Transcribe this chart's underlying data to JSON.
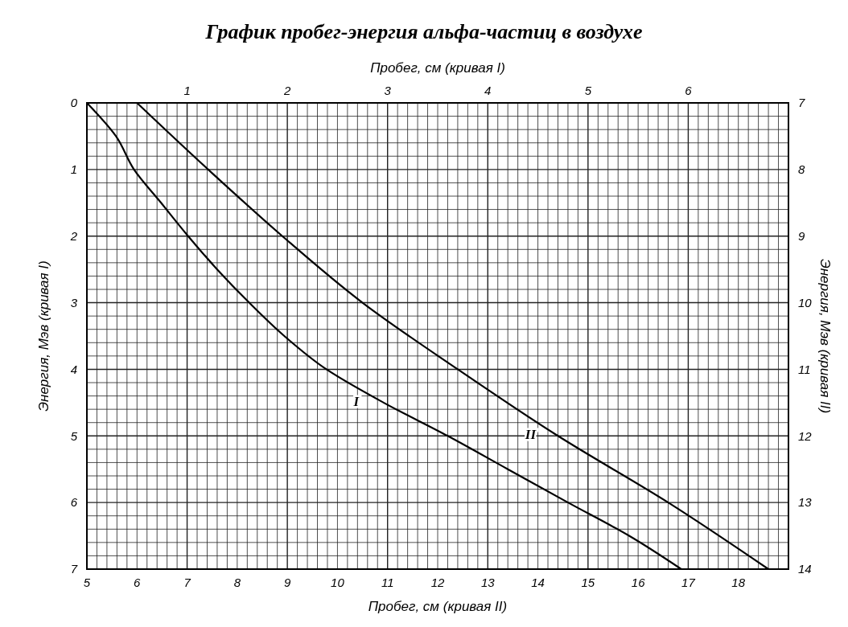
{
  "chart_data": {
    "type": "line",
    "title": "График пробег-энергия альфа-частиц в воздухе",
    "x2label": "Пробег, см (кривая I)",
    "xlabel": "Пробег, см (кривая II)",
    "ylabel": "Энергия, Мэв (кривая I)",
    "y2label": "Энергия, Мэв (кривая II)",
    "xlim": [
      5,
      19
    ],
    "xticks": [
      5,
      6,
      7,
      8,
      9,
      10,
      11,
      12,
      13,
      14,
      15,
      16,
      17,
      18
    ],
    "x2lim": [
      0,
      7
    ],
    "x2ticks": [
      {
        "value": 0,
        "label": null
      },
      {
        "value": 0.1,
        "label": null
      },
      {
        "value": 0.2,
        "label": null
      },
      {
        "value": 0.3,
        "label": null
      },
      {
        "value": 0.4,
        "label": null
      },
      {
        "value": 0.5,
        "label": null
      },
      {
        "value": 0.6,
        "label": null
      },
      {
        "value": 0.7,
        "label": null
      },
      {
        "value": 0.8,
        "label": null
      },
      {
        "value": 0.9,
        "label": null
      },
      1,
      {
        "value": 1.1,
        "label": null
      },
      {
        "value": 1.2,
        "label": null
      },
      {
        "value": 1.3,
        "label": null
      },
      {
        "value": 1.4,
        "label": null
      },
      {
        "value": 1.5,
        "label": null
      },
      {
        "value": 1.6,
        "label": null
      },
      {
        "value": 1.7,
        "label": null
      },
      {
        "value": 1.8,
        "label": null
      },
      {
        "value": 1.9,
        "label": null
      },
      2,
      {
        "value": 2.1,
        "label": null
      },
      {
        "value": 2.2,
        "label": null
      },
      {
        "value": 2.3,
        "label": null
      },
      {
        "value": 2.4,
        "label": null
      },
      {
        "value": 2.5,
        "label": null
      },
      {
        "value": 2.6,
        "label": null
      },
      {
        "value": 2.7,
        "label": null
      },
      {
        "value": 2.8,
        "label": null
      },
      {
        "value": 2.9,
        "label": null
      },
      3,
      {
        "value": 3.1,
        "label": null
      },
      {
        "value": 3.2,
        "label": null
      },
      {
        "value": 3.3,
        "label": null
      },
      {
        "value": 3.4,
        "label": null
      },
      {
        "value": 3.5,
        "label": null
      },
      {
        "value": 3.6,
        "label": null
      },
      {
        "value": 3.7,
        "label": null
      },
      {
        "value": 3.8,
        "label": null
      },
      {
        "value": 3.9,
        "label": null
      },
      4,
      {
        "value": 4.1,
        "label": null
      },
      {
        "value": 4.2,
        "label": null
      },
      {
        "value": 4.3,
        "label": null
      },
      {
        "value": 4.4,
        "label": null
      },
      {
        "value": 4.5,
        "label": null
      },
      {
        "value": 4.6,
        "label": null
      },
      {
        "value": 4.7,
        "label": null
      },
      {
        "value": 4.8,
        "label": null
      },
      {
        "value": 4.9,
        "label": null
      },
      5,
      {
        "value": 5.1,
        "label": null
      },
      {
        "value": 5.2,
        "label": null
      },
      {
        "value": 5.3,
        "label": null
      },
      {
        "value": 5.4,
        "label": null
      },
      {
        "value": 5.5,
        "label": null
      },
      {
        "value": 5.6,
        "label": null
      },
      {
        "value": 5.7,
        "label": null
      },
      {
        "value": 5.8,
        "label": null
      },
      {
        "value": 5.9,
        "label": null
      },
      6,
      {
        "value": 6.1,
        "label": null
      },
      {
        "value": 6.2,
        "label": null
      },
      {
        "value": 6.3,
        "label": null
      },
      {
        "value": 6.4,
        "label": null
      },
      {
        "value": 6.5,
        "label": null
      },
      {
        "value": 6.6,
        "label": null
      },
      {
        "value": 6.7,
        "label": null
      },
      {
        "value": 6.8,
        "label": null
      },
      {
        "value": 6.9,
        "label": null
      },
      {
        "value": 7,
        "label": null
      }
    ],
    "ylim": [
      7,
      0
    ],
    "yticks": [
      0,
      {
        "value": 0.2,
        "label": null
      },
      {
        "value": 0.4,
        "label": null
      },
      {
        "value": 0.6,
        "label": null
      },
      {
        "value": 0.8,
        "label": null
      },
      1,
      {
        "value": 1.2,
        "label": null
      },
      {
        "value": 1.4,
        "label": null
      },
      {
        "value": 1.6,
        "label": null
      },
      {
        "value": 1.8,
        "label": null
      },
      2,
      {
        "value": 2.2,
        "label": null
      },
      {
        "value": 2.4,
        "label": null
      },
      {
        "value": 2.6,
        "label": null
      },
      {
        "value": 2.8,
        "label": null
      },
      3,
      {
        "value": 3.2,
        "label": null
      },
      {
        "value": 3.4,
        "label": null
      },
      {
        "value": 3.6,
        "label": null
      },
      {
        "value": 3.8,
        "label": null
      },
      4,
      {
        "value": 4.2,
        "label": null
      },
      {
        "value": 4.4,
        "label": null
      },
      {
        "value": 4.6,
        "label": null
      },
      {
        "value": 4.8,
        "label": null
      },
      5,
      {
        "value": 5.2,
        "label": null
      },
      {
        "value": 5.4,
        "label": null
      },
      {
        "value": 5.6,
        "label": null
      },
      {
        "value": 5.8,
        "label": null
      },
      6,
      {
        "value": 6.2,
        "label": null
      },
      {
        "value": 6.4,
        "label": null
      },
      {
        "value": 6.6,
        "label": null
      },
      {
        "value": 6.8,
        "label": null
      },
      7
    ],
    "y2lim": [
      14,
      7
    ],
    "y2ticks": [
      7,
      8,
      9,
      10,
      11,
      12,
      13,
      14
    ],
    "grid": true,
    "line_style": "solid",
    "series": [
      {
        "name": "I",
        "color": "#000000",
        "axis": "x2",
        "x": [
          0,
          0.29,
          0.47,
          0.74,
          1.01,
          1.3,
          1.62,
          1.97,
          2.39,
          2.96,
          3.6,
          4.2,
          4.8,
          5.41,
          5.93
        ],
        "values": [
          0,
          0.5,
          1,
          1.5,
          2,
          2.5,
          3,
          3.5,
          4,
          4.5,
          5,
          5.5,
          6,
          6.5,
          7
        ]
      },
      {
        "name": "II",
        "color": "#000000",
        "axis": "y2",
        "x": [
          6.0,
          7.42,
          8.9,
          10.5,
          12.4,
          14.4,
          16.6,
          18.6
        ],
        "values": [
          7,
          8,
          9,
          10,
          11,
          12,
          13,
          14
        ]
      }
    ]
  }
}
